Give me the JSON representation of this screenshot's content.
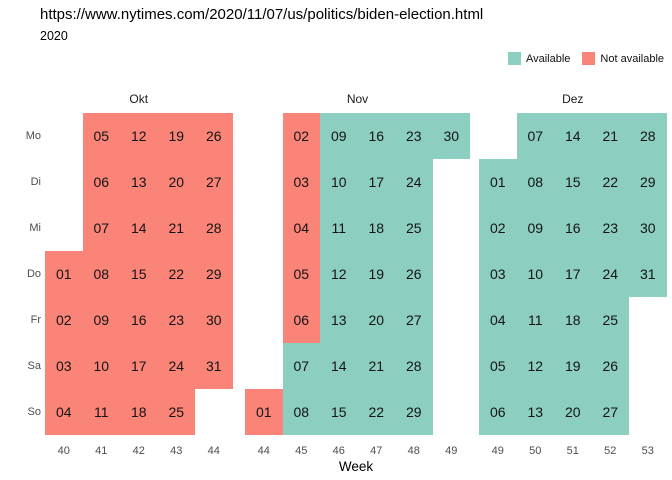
{
  "header": {
    "url": "https://www.nytimes.com/2020/11/07/us/politics/biden-election.html",
    "year": "2020"
  },
  "legend": {
    "items": [
      {
        "label": "Available",
        "color": "#8CCEC0"
      },
      {
        "label": "Not available",
        "color": "#FA8478"
      }
    ]
  },
  "calendar": {
    "day_labels": [
      "Mo",
      "Di",
      "Mi",
      "Do",
      "Fr",
      "Sa",
      "So"
    ],
    "xlabel": "Week",
    "colors": {
      "av": "#8CCEC0",
      "na": "#FA8478"
    },
    "months": [
      {
        "name": "Okt",
        "weeks": [
          "40",
          "41",
          "42",
          "43",
          "44"
        ],
        "rows": [
          [
            null,
            {
              "d": "05",
              "s": "na"
            },
            {
              "d": "12",
              "s": "na"
            },
            {
              "d": "19",
              "s": "na"
            },
            {
              "d": "26",
              "s": "na"
            }
          ],
          [
            null,
            {
              "d": "06",
              "s": "na"
            },
            {
              "d": "13",
              "s": "na"
            },
            {
              "d": "20",
              "s": "na"
            },
            {
              "d": "27",
              "s": "na"
            }
          ],
          [
            null,
            {
              "d": "07",
              "s": "na"
            },
            {
              "d": "14",
              "s": "na"
            },
            {
              "d": "21",
              "s": "na"
            },
            {
              "d": "28",
              "s": "na"
            }
          ],
          [
            {
              "d": "01",
              "s": "na"
            },
            {
              "d": "08",
              "s": "na"
            },
            {
              "d": "15",
              "s": "na"
            },
            {
              "d": "22",
              "s": "na"
            },
            {
              "d": "29",
              "s": "na"
            }
          ],
          [
            {
              "d": "02",
              "s": "na"
            },
            {
              "d": "09",
              "s": "na"
            },
            {
              "d": "16",
              "s": "na"
            },
            {
              "d": "23",
              "s": "na"
            },
            {
              "d": "30",
              "s": "na"
            }
          ],
          [
            {
              "d": "03",
              "s": "na"
            },
            {
              "d": "10",
              "s": "na"
            },
            {
              "d": "17",
              "s": "na"
            },
            {
              "d": "24",
              "s": "na"
            },
            {
              "d": "31",
              "s": "na"
            }
          ],
          [
            {
              "d": "04",
              "s": "na"
            },
            {
              "d": "11",
              "s": "na"
            },
            {
              "d": "18",
              "s": "na"
            },
            {
              "d": "25",
              "s": "na"
            },
            null
          ]
        ]
      },
      {
        "name": "Nov",
        "weeks": [
          "44",
          "45",
          "46",
          "47",
          "48",
          "49"
        ],
        "rows": [
          [
            null,
            {
              "d": "02",
              "s": "na"
            },
            {
              "d": "09",
              "s": "av"
            },
            {
              "d": "16",
              "s": "av"
            },
            {
              "d": "23",
              "s": "av"
            },
            {
              "d": "30",
              "s": "av"
            }
          ],
          [
            null,
            {
              "d": "03",
              "s": "na"
            },
            {
              "d": "10",
              "s": "av"
            },
            {
              "d": "17",
              "s": "av"
            },
            {
              "d": "24",
              "s": "av"
            },
            null
          ],
          [
            null,
            {
              "d": "04",
              "s": "na"
            },
            {
              "d": "11",
              "s": "av"
            },
            {
              "d": "18",
              "s": "av"
            },
            {
              "d": "25",
              "s": "av"
            },
            null
          ],
          [
            null,
            {
              "d": "05",
              "s": "na"
            },
            {
              "d": "12",
              "s": "av"
            },
            {
              "d": "19",
              "s": "av"
            },
            {
              "d": "26",
              "s": "av"
            },
            null
          ],
          [
            null,
            {
              "d": "06",
              "s": "na"
            },
            {
              "d": "13",
              "s": "av"
            },
            {
              "d": "20",
              "s": "av"
            },
            {
              "d": "27",
              "s": "av"
            },
            null
          ],
          [
            null,
            {
              "d": "07",
              "s": "av"
            },
            {
              "d": "14",
              "s": "av"
            },
            {
              "d": "21",
              "s": "av"
            },
            {
              "d": "28",
              "s": "av"
            },
            null
          ],
          [
            {
              "d": "01",
              "s": "na"
            },
            {
              "d": "08",
              "s": "av"
            },
            {
              "d": "15",
              "s": "av"
            },
            {
              "d": "22",
              "s": "av"
            },
            {
              "d": "29",
              "s": "av"
            },
            null
          ]
        ]
      },
      {
        "name": "Dez",
        "weeks": [
          "49",
          "50",
          "51",
          "52",
          "53"
        ],
        "rows": [
          [
            null,
            {
              "d": "07",
              "s": "av"
            },
            {
              "d": "14",
              "s": "av"
            },
            {
              "d": "21",
              "s": "av"
            },
            {
              "d": "28",
              "s": "av"
            }
          ],
          [
            {
              "d": "01",
              "s": "av"
            },
            {
              "d": "08",
              "s": "av"
            },
            {
              "d": "15",
              "s": "av"
            },
            {
              "d": "22",
              "s": "av"
            },
            {
              "d": "29",
              "s": "av"
            }
          ],
          [
            {
              "d": "02",
              "s": "av"
            },
            {
              "d": "09",
              "s": "av"
            },
            {
              "d": "16",
              "s": "av"
            },
            {
              "d": "23",
              "s": "av"
            },
            {
              "d": "30",
              "s": "av"
            }
          ],
          [
            {
              "d": "03",
              "s": "av"
            },
            {
              "d": "10",
              "s": "av"
            },
            {
              "d": "17",
              "s": "av"
            },
            {
              "d": "24",
              "s": "av"
            },
            {
              "d": "31",
              "s": "av"
            }
          ],
          [
            {
              "d": "04",
              "s": "av"
            },
            {
              "d": "11",
              "s": "av"
            },
            {
              "d": "18",
              "s": "av"
            },
            {
              "d": "25",
              "s": "av"
            },
            null
          ],
          [
            {
              "d": "05",
              "s": "av"
            },
            {
              "d": "12",
              "s": "av"
            },
            {
              "d": "19",
              "s": "av"
            },
            {
              "d": "26",
              "s": "av"
            },
            null
          ],
          [
            {
              "d": "06",
              "s": "av"
            },
            {
              "d": "13",
              "s": "av"
            },
            {
              "d": "20",
              "s": "av"
            },
            {
              "d": "27",
              "s": "av"
            },
            null
          ]
        ]
      }
    ]
  },
  "chart_data": {
    "type": "heatmap",
    "title": "2020",
    "subtitle": "https://www.nytimes.com/2020/11/07/us/politics/biden-election.html",
    "xlabel": "Week",
    "ylabel": "",
    "y_categories": [
      "Mo",
      "Di",
      "Mi",
      "Do",
      "Fr",
      "Sa",
      "So"
    ],
    "x_tick_labels_by_month": {
      "Okt": [
        40,
        41,
        42,
        43,
        44
      ],
      "Nov": [
        44,
        45,
        46,
        47,
        48,
        49
      ],
      "Dez": [
        49,
        50,
        51,
        52,
        53
      ]
    },
    "legend_entries": [
      "Available",
      "Not available"
    ],
    "legend_position": "top-right",
    "grid": false,
    "series": [
      {
        "name": "Not available",
        "color": "#FA8478",
        "days": {
          "Okt": [
            1,
            2,
            3,
            4,
            5,
            6,
            7,
            8,
            9,
            10,
            11,
            12,
            13,
            14,
            15,
            16,
            17,
            18,
            19,
            20,
            21,
            22,
            23,
            24,
            25,
            26,
            27,
            28,
            29,
            30,
            31
          ],
          "Nov": [
            1,
            2,
            3,
            4,
            5,
            6
          ],
          "Dez": []
        }
      },
      {
        "name": "Available",
        "color": "#8CCEC0",
        "days": {
          "Okt": [],
          "Nov": [
            7,
            8,
            9,
            10,
            11,
            12,
            13,
            14,
            15,
            16,
            17,
            18,
            19,
            20,
            21,
            22,
            23,
            24,
            25,
            26,
            27,
            28,
            29,
            30
          ],
          "Dez": [
            1,
            2,
            3,
            4,
            5,
            6,
            7,
            8,
            9,
            10,
            11,
            12,
            13,
            14,
            15,
            16,
            17,
            18,
            19,
            20,
            21,
            22,
            23,
            24,
            25,
            26,
            27,
            28,
            29,
            30,
            31
          ]
        }
      }
    ]
  }
}
